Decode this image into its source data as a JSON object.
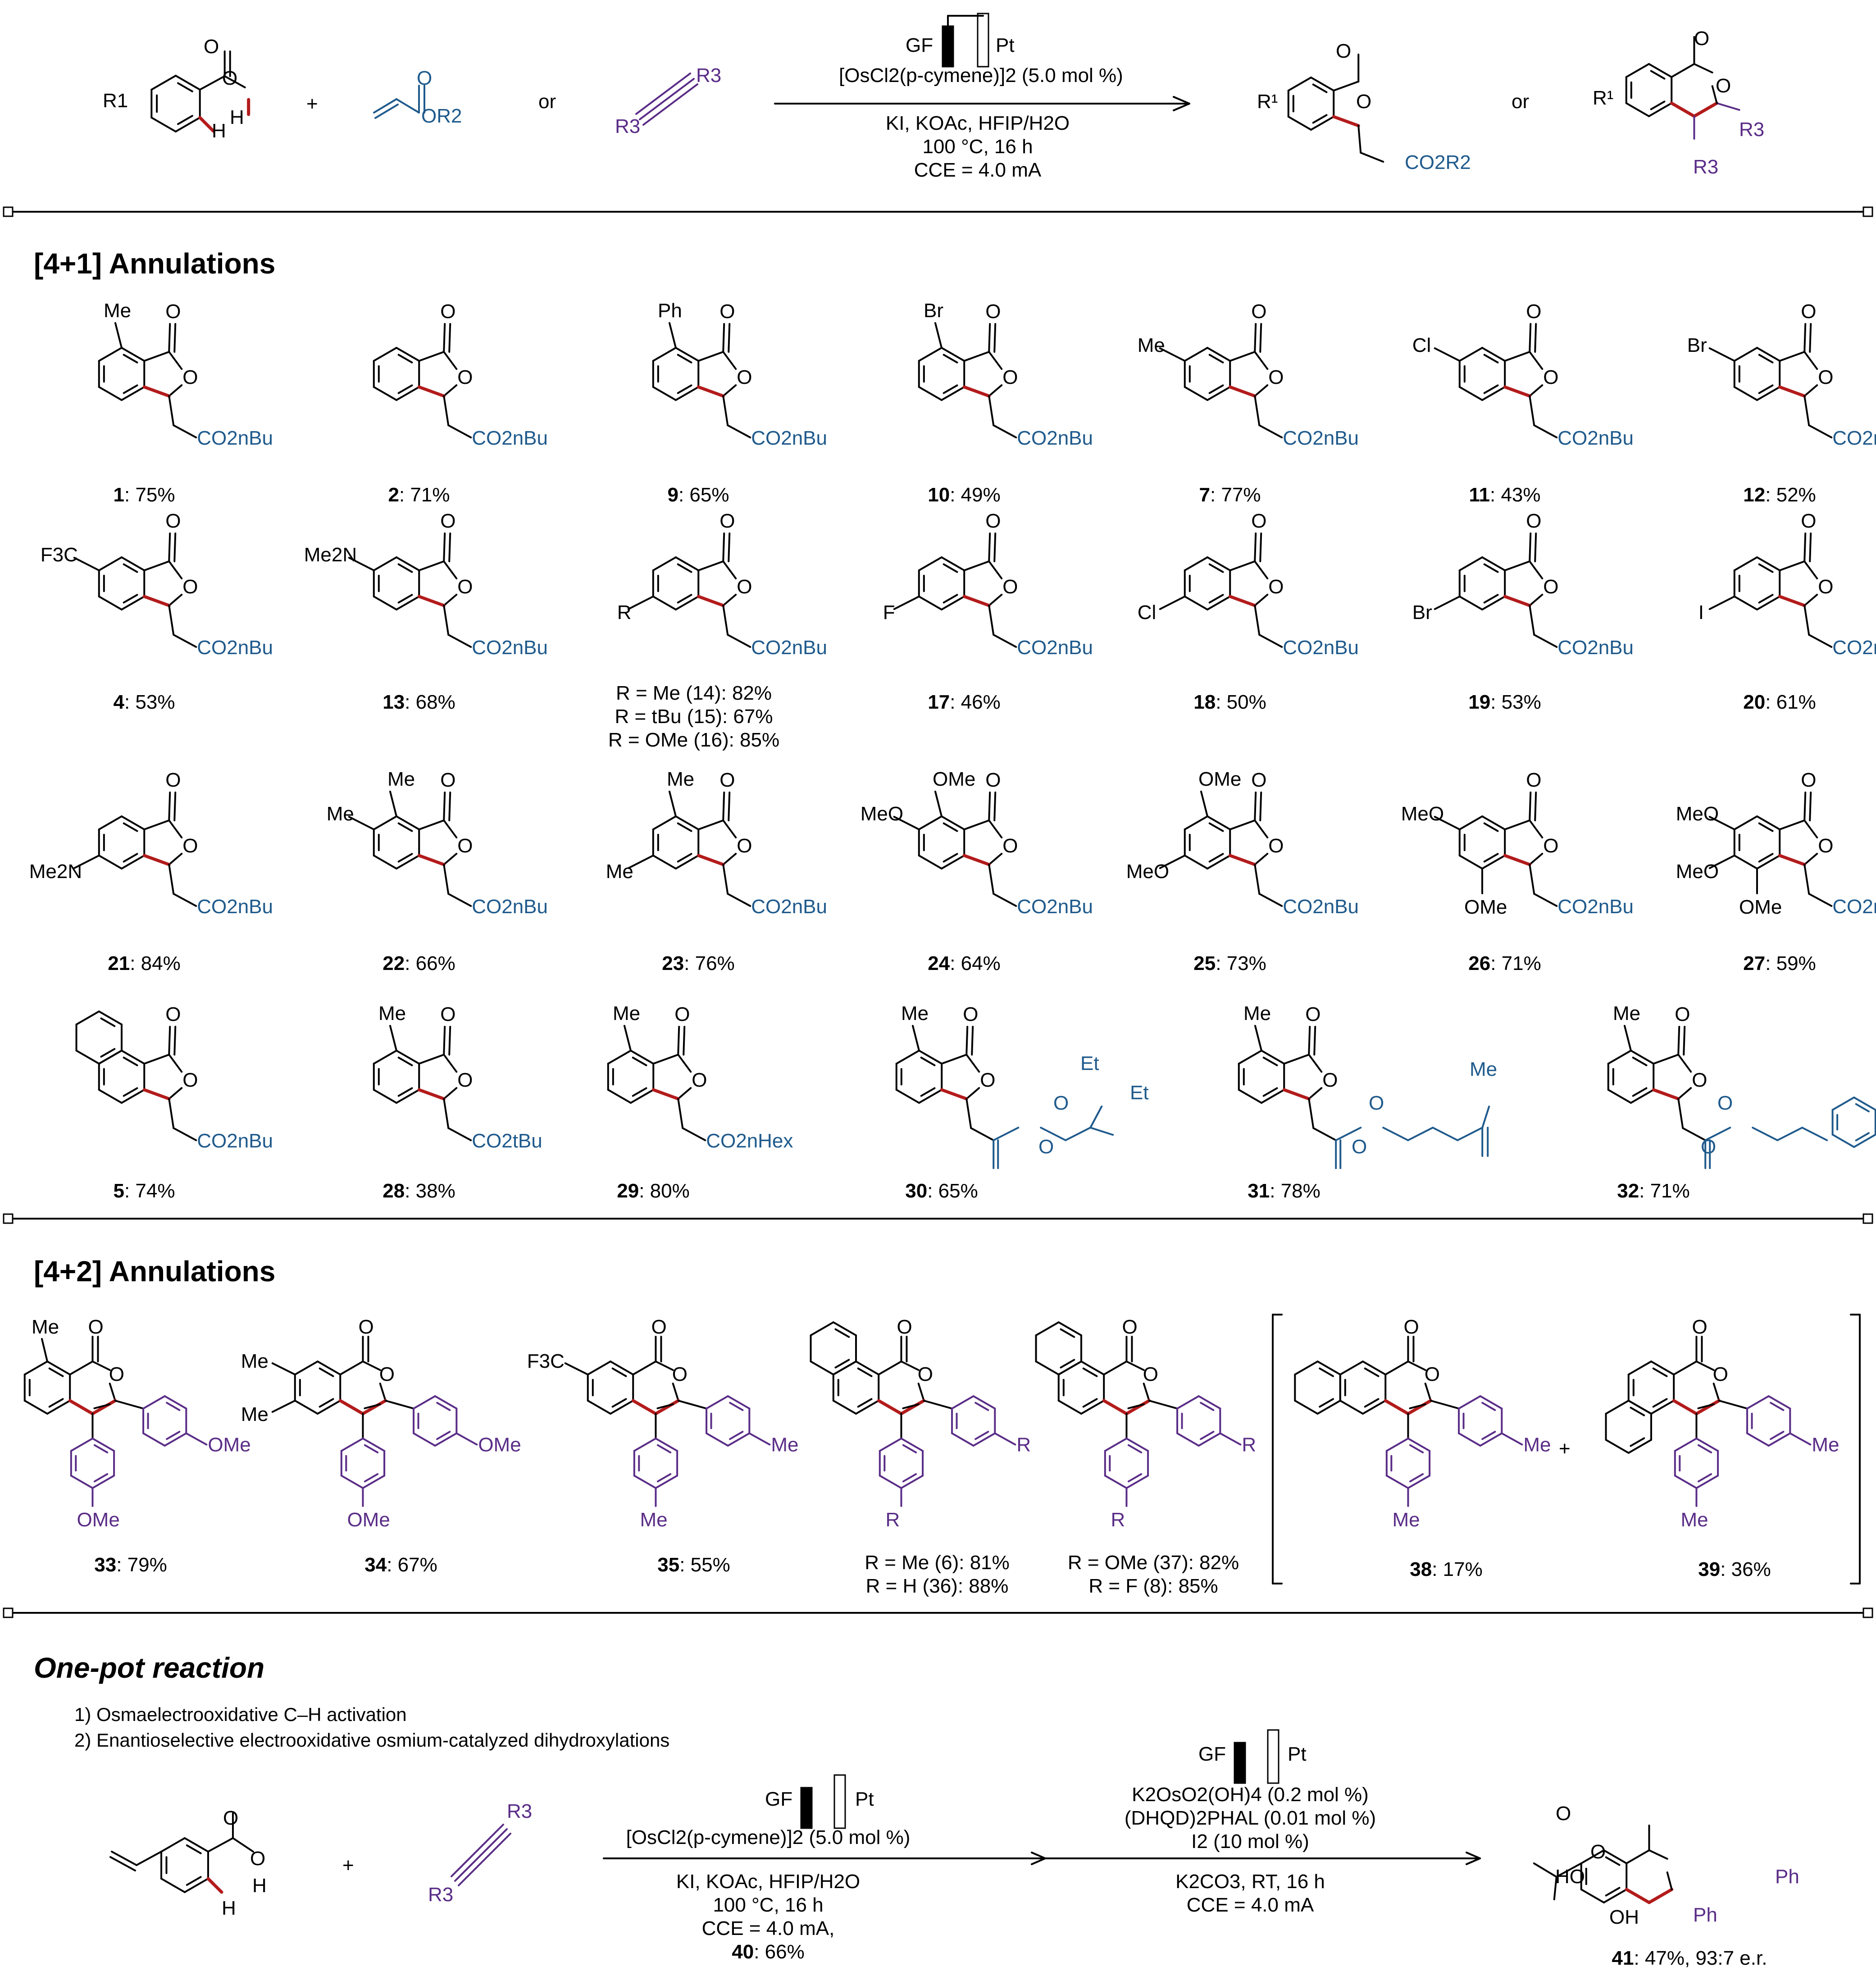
{
  "colors": {
    "bond_red": "#b31b1b",
    "acrylate_blue": "#1f5a8c",
    "alkyne_purple": "#5a2d87",
    "ink": "#000000"
  },
  "scheme": {
    "reactant_acid_label": "R1",
    "plus": "+",
    "acrylate_label": "OR2",
    "or": "or",
    "alkyne_label_1": "R3",
    "alkyne_label_2": "R3",
    "cell_anode": "GF",
    "cell_cathode": "Pt",
    "catalyst": "[OsCl2(p-cymene)]2 (5.0 mol %)",
    "conditions_1": "KI, KOAc, HFIP/H2O",
    "conditions_2": "100 °C, 16 h",
    "conditions_3": "CCE = 4.0 mA",
    "product_1_ester": "CO2R2",
    "product_2_r3": "R3"
  },
  "section_41": {
    "title": "[4+1] Annulations",
    "ester_nbu": "CO2nBu",
    "ester_tbu": "CO2tBu",
    "ester_nhex": "CO2nHex",
    "items": [
      {
        "num": "1",
        "yield": "75%",
        "sub": "Me"
      },
      {
        "num": "2",
        "yield": "71%",
        "sub": ""
      },
      {
        "num": "9",
        "yield": "65%",
        "sub": "Ph"
      },
      {
        "num": "10",
        "yield": "49%",
        "sub": "Br"
      },
      {
        "num": "7",
        "yield": "77%",
        "sub": "Me"
      },
      {
        "num": "11",
        "yield": "43%",
        "sub": "Cl"
      },
      {
        "num": "12",
        "yield": "52%",
        "sub": "Br"
      },
      {
        "num": "4",
        "yield": "53%",
        "sub": "F3C"
      },
      {
        "num": "13",
        "yield": "68%",
        "sub": "Me2N"
      },
      {
        "num": "14/15/16",
        "yield": "",
        "sub": "R"
      },
      {
        "num": "17",
        "yield": "46%",
        "sub": "F"
      },
      {
        "num": "18",
        "yield": "50%",
        "sub": "Cl"
      },
      {
        "num": "19",
        "yield": "53%",
        "sub": "Br"
      },
      {
        "num": "20",
        "yield": "61%",
        "sub": "I"
      },
      {
        "num": "21",
        "yield": "84%",
        "sub": "Me2N"
      },
      {
        "num": "22",
        "yield": "66%",
        "sub": "Me"
      },
      {
        "num": "23",
        "yield": "76%",
        "sub": "Me"
      },
      {
        "num": "24",
        "yield": "64%",
        "sub": "OMe"
      },
      {
        "num": "25",
        "yield": "73%",
        "sub": "OMe"
      },
      {
        "num": "26",
        "yield": "71%",
        "sub": "OMe"
      },
      {
        "num": "27",
        "yield": "59%",
        "sub": "OMe"
      },
      {
        "num": "5",
        "yield": "74%",
        "sub": ""
      },
      {
        "num": "28",
        "yield": "38%",
        "sub": "Me"
      },
      {
        "num": "29",
        "yield": "80%",
        "sub": "Me"
      },
      {
        "num": "30",
        "yield": "65%",
        "sub": "Me"
      },
      {
        "num": "31",
        "yield": "78%",
        "sub": "Me"
      },
      {
        "num": "32",
        "yield": "71%",
        "sub": "Me"
      }
    ],
    "r14": "R = Me (14): 82%",
    "r15": "R = tBu (15): 67%",
    "r16": "R = OMe (16): 85%",
    "r30_a": "Et",
    "r30_b": "Et",
    "r31_me": "Me"
  },
  "section_42": {
    "title": "[4+2] Annulations",
    "items": [
      {
        "num": "33",
        "yield": "79%"
      },
      {
        "num": "34",
        "yield": "67%"
      },
      {
        "num": "35",
        "yield": "55%"
      },
      {
        "num": "38",
        "yield": "17%"
      },
      {
        "num": "39",
        "yield": "36%"
      }
    ],
    "r6": "R = Me (6): 81%",
    "r36": "R = H (36): 88%",
    "r37": "R = OMe (37): 82%",
    "r8": "R = F (8): 85%",
    "ome": "OMe",
    "me": "Me",
    "r": "R",
    "cf3": "F3C"
  },
  "section_onepot": {
    "title": "One-pot reaction",
    "step_1": "1) Osmaelectrooxidative C–H activation",
    "step_2": "2) Enantioselective electrooxidative osmium-catalyzed dihydroxylations",
    "plus": "+",
    "alkyne_r1": "R3",
    "alkyne_r2": "R3",
    "cond_a_catalyst": "[OsCl2(p-cymene)]2 (5.0 mol %)",
    "cond_a_1": "KI, KOAc, HFIP/H2O",
    "cond_a_2": "100 °C, 16 h",
    "cond_a_3": "CCE = 4.0 mA,",
    "cond_a_4_num": "40",
    "cond_a_4_yield": ": 66%",
    "cond_b_1": "K2OsO2(OH)4 (0.2 mol %)",
    "cond_b_2": "(DHQD)2PHAL (0.01 mol %)",
    "cond_b_3": "I2 (10 mol %)",
    "cond_b_4": "K2CO3, RT, 16 h",
    "cond_b_5": "CCE = 4.0 mA",
    "gf": "GF",
    "pt": "Pt",
    "product_num": "41",
    "product_yield": ": 47%, 93:7 e.r.",
    "ho": "HO",
    "oh": "OH",
    "ph": "Ph"
  }
}
